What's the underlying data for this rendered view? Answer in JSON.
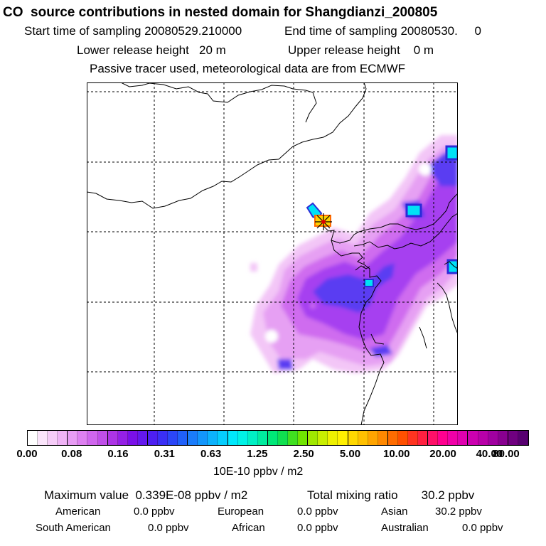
{
  "header": {
    "title": "CO  source contributions in nested domain for Shangdianzi_200805",
    "start_time": "Start time of sampling 20080529.210000",
    "end_time": "End time of sampling 20080530.     0",
    "lower_release": "Lower release height   20 m",
    "upper_release": "Upper release height    0 m",
    "tracer_note": "Passive tracer used, meteorological data are from ECMWF"
  },
  "colorbar": {
    "tick_labels": [
      "0.00",
      "0.08",
      "0.16",
      "0.31",
      "0.63",
      "1.25",
      "2.50",
      "5.00",
      "10.00",
      "20.00",
      "40.00",
      "80.00"
    ],
    "unit": "10E-10 ppbv / m2",
    "colors": [
      "#ffffff",
      "#fbe5fb",
      "#f6ccf8",
      "#f0b3f6",
      "#e89cf4",
      "#de80f1",
      "#d066ee",
      "#c04fe9",
      "#ad34e6",
      "#9520e6",
      "#7a10e9",
      "#6418ee",
      "#4d1ff2",
      "#3a2ff6",
      "#2b46f8",
      "#2060fa",
      "#1a7cfb",
      "#1396fc",
      "#0cb2fd",
      "#05cdfd",
      "#00e8fc",
      "#00f2e6",
      "#00f0c4",
      "#00ec9e",
      "#00e878",
      "#10e050",
      "#40e020",
      "#70e400",
      "#a0e800",
      "#c8ee00",
      "#eef000",
      "#fff000",
      "#ffd800",
      "#ffc000",
      "#ffa400",
      "#ff8800",
      "#ff6c00",
      "#ff5000",
      "#ff3420",
      "#ff2040",
      "#ff1068",
      "#ff0090",
      "#f000a8",
      "#e000b0",
      "#cc00b0",
      "#b800a8",
      "#a000a0",
      "#880090",
      "#700080",
      "#580070"
    ]
  },
  "footer": {
    "max_value": "Maximum value  0.339E-08 ppbv / m2",
    "total_mixing": "Total mixing ratio       30.2 ppbv",
    "sources": [
      {
        "name": "American",
        "value": "0.0 ppbv"
      },
      {
        "name": "European",
        "value": "0.0 ppbv"
      },
      {
        "name": "Asian",
        "value": "30.2 ppbv"
      },
      {
        "name": "South American",
        "value": "0.0 ppbv"
      },
      {
        "name": "African",
        "value": "0.0 ppbv"
      },
      {
        "name": "Australian",
        "value": "0.0 ppbv"
      }
    ]
  },
  "map": {
    "receptor_marker": "star-icon",
    "plume_colors": {
      "faint": "#f3c6f7",
      "light": "#e6a0f3",
      "mid": "#cf6cef",
      "violet": "#a63ff0",
      "blue": "#5a3cf2",
      "cyan": "#00e2f5",
      "hot": "#ff8a00"
    }
  }
}
